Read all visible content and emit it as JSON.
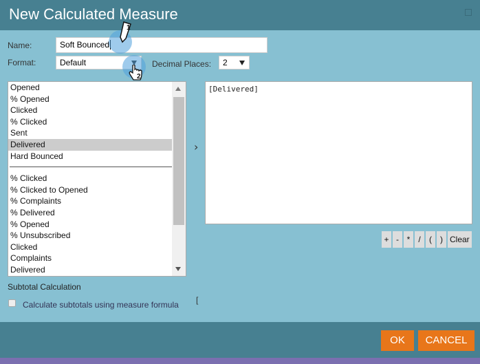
{
  "dialog": {
    "title": "New Calculated Measure",
    "help_icon": "help-icon"
  },
  "form": {
    "name_label": "Name:",
    "name_value": "Soft Bounced",
    "format_label": "Format:",
    "format_value": "Default",
    "decimal_label": "Decimal Places:",
    "decimal_value": "2"
  },
  "measures": {
    "group1": [
      "Opened",
      "% Opened",
      "Clicked",
      "% Clicked",
      "Sent",
      "Delivered",
      "Hard Bounced"
    ],
    "group2": [
      "% Clicked",
      "% Clicked to Opened",
      "% Complaints",
      "% Delivered",
      "% Opened",
      "% Unsubscribed",
      "Clicked",
      "Complaints",
      "Delivered"
    ],
    "selected": "Delivered"
  },
  "add_arrow": "›",
  "formula": "[Delivered]",
  "operators": [
    "+",
    "-",
    "*",
    "/",
    "(",
    ")",
    "Clear"
  ],
  "subtotal": {
    "heading": "Subtotal Calculation",
    "checkbox_label": "Calculate subtotals using measure formula",
    "checked": false,
    "bracket": "["
  },
  "annotations": [
    "1",
    "2"
  ],
  "buttons": {
    "ok": "OK",
    "cancel": "CANCEL"
  },
  "colors": {
    "header": "#478091",
    "body": "#87c0d2",
    "button": "#e8761a"
  }
}
